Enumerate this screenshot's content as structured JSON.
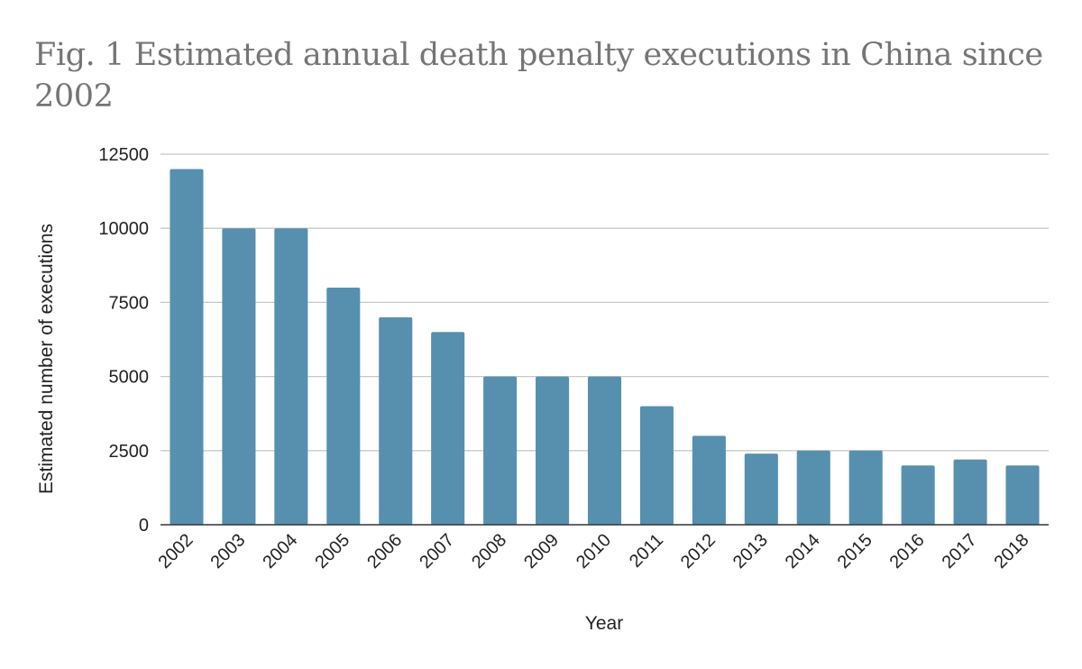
{
  "chart_data": {
    "type": "bar",
    "title": "Fig. 1 Estimated annual death penalty executions in China since 2002",
    "xlabel": "Year",
    "ylabel": "Estimated number of executions",
    "categories": [
      "2002",
      "2003",
      "2004",
      "2005",
      "2006",
      "2007",
      "2008",
      "2009",
      "2010",
      "2011",
      "2012",
      "2013",
      "2014",
      "2015",
      "2016",
      "2017",
      "2018"
    ],
    "values": [
      12000,
      10000,
      10000,
      8000,
      7000,
      6500,
      5000,
      5000,
      5000,
      4000,
      3000,
      2400,
      2500,
      2500,
      2000,
      2200,
      2000
    ],
    "ylim": [
      0,
      12500
    ],
    "yticks": [
      0,
      2500,
      5000,
      7500,
      10000,
      12500
    ],
    "ytick_labels": [
      "0",
      "2500",
      "5000",
      "7500",
      "10000",
      "12500"
    ],
    "grid": true,
    "bar_color": "#5790af",
    "gridline_color": "#c8c8c8",
    "baseline_color": "#333333"
  }
}
